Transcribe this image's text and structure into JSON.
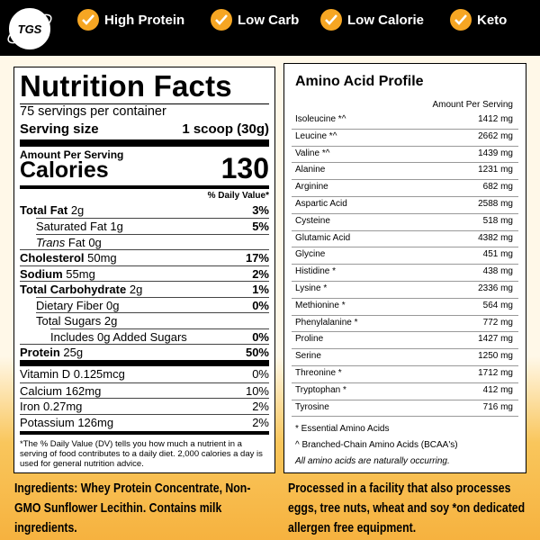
{
  "logo": "TGS",
  "badges": [
    "High Protein",
    "Low Carb",
    "Low Calorie",
    "Keto"
  ],
  "nutrition": {
    "title": "Nutrition Facts",
    "servings": "75 servings per container",
    "serving_size_label": "Serving size",
    "serving_size": "1 scoop (30g)",
    "amount_label": "Amount Per Serving",
    "calories_label": "Calories",
    "calories": "130",
    "dv_header": "% Daily Value*",
    "rows": [
      {
        "label": "Total Fat",
        "amount": "2g",
        "dv": "3%"
      },
      {
        "label": "Saturated Fat",
        "amount": "1g",
        "dv": "5%"
      },
      {
        "label_italic": "Trans",
        "label": "Fat",
        "amount": "0g"
      },
      {
        "label": "Cholesterol",
        "amount": "50mg",
        "dv": "17%"
      },
      {
        "label": "Sodium",
        "amount": "55mg",
        "dv": "2%"
      },
      {
        "label": "Total Carbohydrate",
        "amount": "2g",
        "dv": "1%"
      },
      {
        "label": "Dietary Fiber",
        "amount": "0g",
        "dv": "0%"
      },
      {
        "label": "Total Sugars",
        "amount": "2g"
      },
      {
        "label": "Includes 0g Added Sugars",
        "dv": "0%"
      },
      {
        "label": "Protein",
        "amount": "25g",
        "dv": "50%"
      },
      {
        "label": "Vitamin D",
        "amount": "0.125mcg",
        "dv": "0%"
      },
      {
        "label": "Calcium",
        "amount": "162mg",
        "dv": "10%"
      },
      {
        "label": "Iron",
        "amount": "0.27mg",
        "dv": "2%"
      },
      {
        "label": "Potassium",
        "amount": "126mg",
        "dv": "2%"
      }
    ],
    "footnote": "*The % Daily Value (DV) tells you how much a nutrient in a serving of food contributes to a daily diet. 2,000 calories a day is used for general nutrition advice."
  },
  "amino": {
    "title": "Amino Acid Profile",
    "header": "Amount Per Serving",
    "rows": [
      {
        "name": "Isoleucine *^",
        "amount": "1412 mg"
      },
      {
        "name": "Leucine *^",
        "amount": "2662 mg"
      },
      {
        "name": "Valine *^",
        "amount": "1439 mg"
      },
      {
        "name": "Alanine",
        "amount": "1231 mg"
      },
      {
        "name": "Arginine",
        "amount": "682 mg"
      },
      {
        "name": "Aspartic Acid",
        "amount": "2588 mg"
      },
      {
        "name": "Cysteine",
        "amount": "518 mg"
      },
      {
        "name": "Glutamic Acid",
        "amount": "4382 mg"
      },
      {
        "name": "Glycine",
        "amount": "451 mg"
      },
      {
        "name": "Histidine *",
        "amount": "438 mg"
      },
      {
        "name": "Lysine *",
        "amount": "2336 mg"
      },
      {
        "name": "Methionine *",
        "amount": "564 mg"
      },
      {
        "name": "Phenylalanine *",
        "amount": "772 mg"
      },
      {
        "name": "Proline",
        "amount": "1427 mg"
      },
      {
        "name": "Serine",
        "amount": "1250 mg"
      },
      {
        "name": "Threonine *",
        "amount": "1712 mg"
      },
      {
        "name": "Tryptophan *",
        "amount": "412 mg"
      },
      {
        "name": "Tyrosine",
        "amount": "716 mg"
      }
    ],
    "notes": [
      "* Essential Amino Acids",
      "^ Branched-Chain Amino Acids (BCAA's)",
      "All amino acids are naturally occurring."
    ]
  },
  "ingredients": "Ingredients: Whey Protein Concentrate, Non-GMO Sunflower Lecithin. Contains milk ingredients.",
  "allergen": "Processed in a facility that also processes eggs, tree nuts, wheat and soy *on dedicated allergen free equipment."
}
